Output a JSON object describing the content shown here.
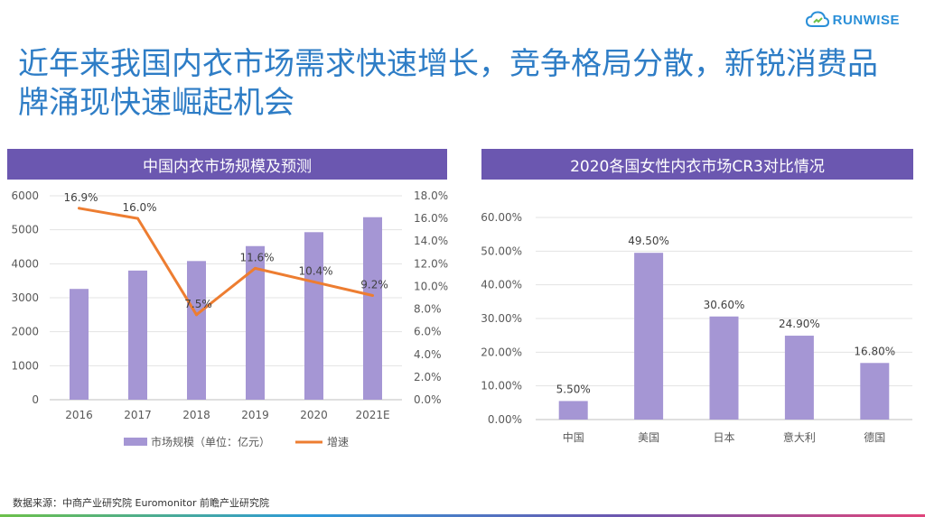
{
  "brand": {
    "name": "RUNWISE",
    "accent": "#2a8fd8",
    "icon": "cloud-logo-icon"
  },
  "title": "近年来我国内衣市场需求快速增长，竞争格局分散，新锐消费品牌涌现快速崛起机会",
  "colors": {
    "title": "#2e7dc6",
    "header_bg": "#6b57b0",
    "bar": "#a596d4",
    "line": "#ed7d31"
  },
  "chart_data": [
    {
      "type": "bar",
      "panel_title": "中国内衣市场规模及预测",
      "categories": [
        "2016",
        "2017",
        "2018",
        "2019",
        "2020",
        "2021E"
      ],
      "series": [
        {
          "name": "市场规模（单位：亿元）",
          "type": "bar",
          "axis": "left",
          "values": [
            3260,
            3800,
            4080,
            4520,
            4930,
            5370
          ]
        },
        {
          "name": "增速",
          "type": "line",
          "axis": "right",
          "values": [
            16.9,
            16.0,
            7.5,
            11.6,
            10.4,
            9.2
          ],
          "labels": [
            "16.9%",
            "16.0%",
            "7.5%",
            "11.6%",
            "10.4%",
            "9.2%"
          ]
        }
      ],
      "ylim_left": [
        0,
        6000
      ],
      "yticks_left": [
        "0",
        "1000",
        "2000",
        "3000",
        "4000",
        "5000",
        "6000"
      ],
      "ylim_right": [
        0,
        18
      ],
      "yticks_right": [
        "0.0%",
        "2.0%",
        "4.0%",
        "6.0%",
        "8.0%",
        "10.0%",
        "12.0%",
        "14.0%",
        "16.0%",
        "18.0%"
      ],
      "legend": "bottom",
      "grid": true
    },
    {
      "type": "bar",
      "panel_title": "2020各国女性内衣市场CR3对比情况",
      "categories": [
        "中国",
        "美国",
        "日本",
        "意大利",
        "德国"
      ],
      "values": [
        5.5,
        49.5,
        30.6,
        24.9,
        16.8
      ],
      "labels": [
        "5.50%",
        "49.50%",
        "30.60%",
        "24.90%",
        "16.80%"
      ],
      "ylim": [
        0,
        60
      ],
      "yticks": [
        "0.00%",
        "10.00%",
        "20.00%",
        "30.00%",
        "40.00%",
        "50.00%",
        "60.00%"
      ],
      "grid": true
    }
  ],
  "source": "数据来源：中商产业研究院 Euromonitor 前瞻产业研究院"
}
